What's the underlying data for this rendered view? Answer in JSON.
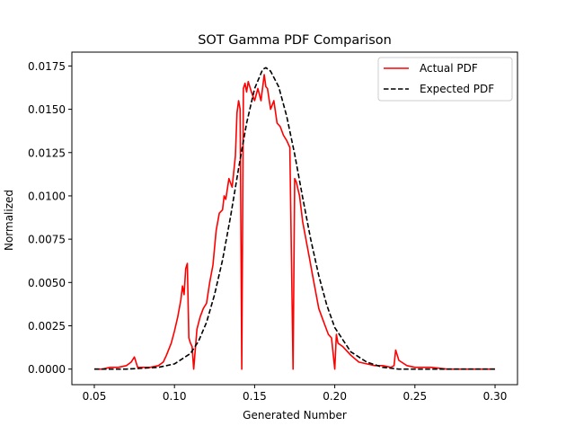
{
  "chart_data": {
    "type": "line",
    "title": "SOT Gamma PDF Comparison",
    "xlabel": "Generated Number",
    "ylabel": "Normalized",
    "xlim": [
      0.036,
      0.314
    ],
    "ylim": [
      -0.0009,
      0.0183
    ],
    "xticks": [
      0.05,
      0.1,
      0.15,
      0.2,
      0.25,
      0.3
    ],
    "xtick_labels": [
      "0.05",
      "0.10",
      "0.15",
      "0.20",
      "0.25",
      "0.30"
    ],
    "yticks": [
      0.0,
      0.0025,
      0.005,
      0.0075,
      0.01,
      0.0125,
      0.015,
      0.0175
    ],
    "ytick_labels": [
      "0.0000",
      "0.0025",
      "0.0050",
      "0.0075",
      "0.0100",
      "0.0125",
      "0.0150",
      "0.0175"
    ],
    "grid": false,
    "legend_position": "top-right",
    "series": [
      {
        "name": "Actual PDF",
        "color": "#ff0000",
        "style": "solid",
        "x": [
          0.05,
          0.055,
          0.06,
          0.065,
          0.07,
          0.073,
          0.075,
          0.077,
          0.08,
          0.085,
          0.09,
          0.093,
          0.095,
          0.098,
          0.1,
          0.102,
          0.104,
          0.105,
          0.106,
          0.107,
          0.108,
          0.109,
          0.11,
          0.111,
          0.112,
          0.114,
          0.116,
          0.118,
          0.12,
          0.122,
          0.124,
          0.126,
          0.128,
          0.13,
          0.131,
          0.132,
          0.134,
          0.136,
          0.138,
          0.139,
          0.14,
          0.141,
          0.142,
          0.143,
          0.144,
          0.145,
          0.146,
          0.148,
          0.15,
          0.152,
          0.154,
          0.156,
          0.157,
          0.158,
          0.16,
          0.162,
          0.164,
          0.166,
          0.168,
          0.17,
          0.172,
          0.174,
          0.175,
          0.176,
          0.178,
          0.18,
          0.182,
          0.184,
          0.186,
          0.188,
          0.19,
          0.192,
          0.194,
          0.196,
          0.198,
          0.2,
          0.201,
          0.202,
          0.205,
          0.21,
          0.215,
          0.22,
          0.225,
          0.23,
          0.235,
          0.237,
          0.238,
          0.24,
          0.245,
          0.25,
          0.255,
          0.26,
          0.27,
          0.28,
          0.29,
          0.3
        ],
        "y": [
          0.0,
          0.0,
          0.0001,
          0.0001,
          0.0002,
          0.0004,
          0.0007,
          0.0001,
          0.0001,
          0.0001,
          0.0002,
          0.0004,
          0.0008,
          0.0015,
          0.0022,
          0.003,
          0.004,
          0.0048,
          0.0043,
          0.0058,
          0.0061,
          0.0018,
          0.0015,
          0.0013,
          0.0,
          0.0023,
          0.003,
          0.0035,
          0.0038,
          0.005,
          0.006,
          0.008,
          0.009,
          0.0092,
          0.01,
          0.0098,
          0.011,
          0.0105,
          0.0123,
          0.0148,
          0.0155,
          0.015,
          0.0,
          0.0162,
          0.0165,
          0.016,
          0.0166,
          0.016,
          0.0155,
          0.0162,
          0.0155,
          0.017,
          0.0163,
          0.0162,
          0.015,
          0.0155,
          0.0142,
          0.014,
          0.0135,
          0.0132,
          0.0128,
          0.0,
          0.011,
          0.0108,
          0.01,
          0.0085,
          0.0075,
          0.0065,
          0.0055,
          0.0045,
          0.0035,
          0.003,
          0.0025,
          0.002,
          0.0018,
          0.0,
          0.002,
          0.0015,
          0.0013,
          0.0008,
          0.0004,
          0.0003,
          0.0002,
          0.0002,
          0.0001,
          0.0002,
          0.0011,
          0.0005,
          0.0002,
          0.0001,
          0.0001,
          0.0001,
          0.0,
          0.0,
          0.0,
          0.0
        ]
      },
      {
        "name": "Expected PDF",
        "color": "#000000",
        "style": "dashed",
        "x": [
          0.05,
          0.07,
          0.09,
          0.1,
          0.11,
          0.115,
          0.12,
          0.125,
          0.13,
          0.135,
          0.14,
          0.145,
          0.15,
          0.155,
          0.157,
          0.16,
          0.165,
          0.17,
          0.175,
          0.18,
          0.185,
          0.19,
          0.195,
          0.2,
          0.21,
          0.22,
          0.23,
          0.24,
          0.26,
          0.28,
          0.3
        ],
        "y": [
          0.0,
          0.0,
          0.0001,
          0.0003,
          0.0009,
          0.0016,
          0.0027,
          0.0043,
          0.0063,
          0.0088,
          0.0116,
          0.0142,
          0.0162,
          0.0173,
          0.0174,
          0.0172,
          0.0163,
          0.0146,
          0.0124,
          0.0099,
          0.0075,
          0.0054,
          0.0037,
          0.0024,
          0.001,
          0.0004,
          0.0001,
          0.0,
          0.0,
          0.0,
          0.0
        ]
      }
    ]
  }
}
